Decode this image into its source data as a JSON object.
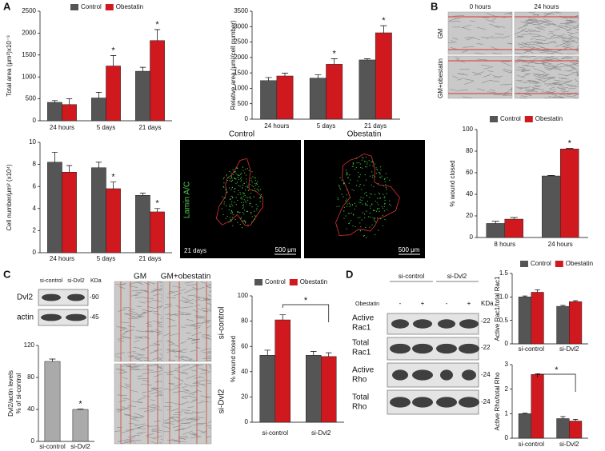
{
  "panel_labels": [
    "A",
    "B",
    "C",
    "D"
  ],
  "microscopy": {
    "columns": [
      "Control",
      "Obestatin"
    ],
    "stain": "Lamin A/C",
    "time": "21 days",
    "scale": [
      "500 μm",
      "500 μm"
    ]
  },
  "wound_images_b": {
    "columns": [
      "0 hours",
      "24 hours"
    ],
    "rows": [
      "GM",
      "GM+obestatin"
    ]
  },
  "blot_c": {
    "lanes": [
      "si-control",
      "si-Dvl2"
    ],
    "unit": "KDa",
    "rows": [
      "Dvl2",
      "actin"
    ],
    "sizes": [
      "-90",
      "-45"
    ]
  },
  "wound_images_c": {
    "columns": [
      "GM",
      "GM+obestatin"
    ],
    "rows": [
      "si-control",
      "si-Dvl2"
    ]
  },
  "blot_d": {
    "groups": [
      "si-control",
      "si-Dvl2"
    ],
    "treatment": "Obestatin",
    "lanes": [
      "-",
      "+",
      "-",
      "+"
    ],
    "unit": "KDa",
    "rows": [
      [
        "Active",
        "Rac1"
      ],
      [
        "Total",
        "Rac1"
      ],
      [
        "Active",
        "Rho"
      ],
      [
        "Total",
        "Rho"
      ]
    ],
    "sizes": [
      "-22",
      "-22",
      "-24",
      "-24"
    ]
  },
  "chart_data": [
    {
      "type": "bar",
      "ylabel": "Total area (μm²)x10⁻³",
      "categories": [
        "24 hours",
        "5 days",
        "21 days"
      ],
      "series": [
        {
          "name": "Control",
          "color": "#555555",
          "values": [
            420,
            520,
            1130
          ],
          "errors": [
            40,
            130,
            90
          ]
        },
        {
          "name": "Obestatin",
          "color": "#d0191f",
          "values": [
            370,
            1250,
            1830
          ],
          "errors": [
            130,
            240,
            250
          ],
          "significance": [
            null,
            "*",
            "*"
          ]
        }
      ],
      "ylim": [
        0,
        2500
      ],
      "yticks": [
        0,
        500,
        1000,
        1500,
        2000,
        2500
      ],
      "legend": "top"
    },
    {
      "type": "bar",
      "ylabel": "Relative area (μm²/cell number)",
      "categories": [
        "24 hours",
        "5 days",
        "21 days"
      ],
      "series": [
        {
          "color": "#555555",
          "values": [
            1250,
            1330,
            1920
          ],
          "errors": [
            100,
            110,
            40
          ]
        },
        {
          "color": "#d0191f",
          "values": [
            1400,
            1780,
            2800
          ],
          "errors": [
            90,
            180,
            230
          ],
          "significance": [
            null,
            "*",
            "*"
          ]
        }
      ],
      "ylim": [
        0,
        3500
      ],
      "yticks": [
        0,
        500,
        1000,
        1500,
        2000,
        2500,
        3000,
        3500
      ]
    },
    {
      "type": "bar",
      "ylabel": "Cell number/μm² (x10⁴)",
      "categories": [
        "24 hours",
        "5 days",
        "21 days"
      ],
      "series": [
        {
          "color": "#555555",
          "values": [
            8.2,
            7.7,
            5.2
          ],
          "errors": [
            0.9,
            0.5,
            0.2
          ]
        },
        {
          "color": "#d0191f",
          "values": [
            7.3,
            5.8,
            3.7
          ],
          "errors": [
            0.6,
            0.6,
            0.3
          ],
          "significance": [
            null,
            "*",
            "*"
          ]
        }
      ],
      "ylim": [
        0,
        10
      ],
      "yticks": [
        0,
        2,
        4,
        6,
        8,
        10
      ]
    },
    {
      "type": "bar",
      "ylabel": "% wound closed",
      "categories": [
        "8 hours",
        "24 hours"
      ],
      "series": [
        {
          "name": "Control",
          "color": "#555555",
          "values": [
            13,
            57
          ],
          "errors": [
            2,
            0.5
          ]
        },
        {
          "name": "Obestatin",
          "color": "#d0191f",
          "values": [
            17,
            82
          ],
          "errors": [
            1.5,
            0.5
          ],
          "significance": [
            null,
            "*"
          ]
        }
      ],
      "ylim": [
        0,
        100
      ],
      "yticks": [
        0,
        20,
        40,
        60,
        80,
        100
      ],
      "legend": "top"
    },
    {
      "type": "bar",
      "ylabel": [
        "Dvl2/actin levels",
        "% of si-control"
      ],
      "categories": [
        "si-control",
        "si-Dvl2"
      ],
      "series": [
        {
          "color": "#aaaaaa",
          "values": [
            100,
            40
          ],
          "errors": [
            3,
            0.5
          ],
          "significance": [
            null,
            "*"
          ]
        }
      ],
      "ylim": [
        0,
        120
      ],
      "yticks": [
        0,
        40,
        80,
        120
      ]
    },
    {
      "type": "bar",
      "ylabel": "% wound closed",
      "categories": [
        "si-control",
        "si-Dvl2"
      ],
      "series": [
        {
          "name": "Control",
          "color": "#555555",
          "values": [
            53,
            53
          ],
          "errors": [
            4,
            3
          ]
        },
        {
          "name": "Obestatin",
          "color": "#d0191f",
          "values": [
            81,
            52
          ],
          "errors": [
            4,
            3
          ]
        }
      ],
      "ylim": [
        0,
        100
      ],
      "yticks": [
        0,
        20,
        40,
        60,
        80,
        100
      ],
      "legend": "top",
      "annotation": "*"
    },
    {
      "type": "bar",
      "ylabel": "Active Rac1/total Rac1",
      "categories": [
        "si-control",
        "si-Dvl2"
      ],
      "series": [
        {
          "name": "Control",
          "color": "#555555",
          "values": [
            1.0,
            0.8
          ],
          "errors": [
            0.02,
            0.02
          ]
        },
        {
          "name": "Obestatin",
          "color": "#d0191f",
          "values": [
            1.1,
            0.9
          ],
          "errors": [
            0.05,
            0.02
          ]
        }
      ],
      "ylim": [
        0,
        1.5
      ],
      "yticks": [
        0,
        0.5,
        {
          "value": 1,
          "label": "1.0"
        },
        1.5
      ],
      "legend": "top"
    },
    {
      "type": "bar",
      "ylabel": "Active Rho/total Rho",
      "categories": [
        "si-control",
        "si-Dvl2"
      ],
      "series": [
        {
          "color": "#555555",
          "values": [
            1.0,
            0.8
          ],
          "errors": [
            0.02,
            0.08
          ]
        },
        {
          "color": "#d0191f",
          "values": [
            2.6,
            0.7
          ],
          "errors": [
            0.03,
            0.07
          ]
        }
      ],
      "ylim": [
        0,
        3
      ],
      "yticks": [
        0,
        1,
        2,
        3
      ],
      "annotation": "*"
    }
  ]
}
